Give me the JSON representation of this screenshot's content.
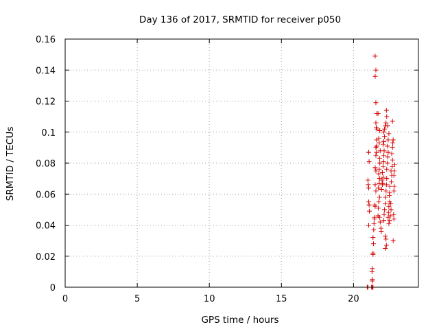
{
  "chart_data": {
    "type": "scatter",
    "title": "Day 136 of 2017, SRMTID for receiver p050",
    "xlabel": "GPS time / hours",
    "ylabel": "SRMTID / TECUs",
    "xlim": [
      0,
      24.5
    ],
    "ylim": [
      0,
      0.16
    ],
    "xticks": [
      0,
      5,
      10,
      15,
      20
    ],
    "yticks": [
      0,
      0.02,
      0.04,
      0.06,
      0.08,
      0.1,
      0.12,
      0.14,
      0.16
    ],
    "xtick_labels": [
      "0",
      "5",
      "10",
      "15",
      "20"
    ],
    "ytick_labels": [
      "0",
      "0.02",
      "0.04",
      "0.06",
      "0.08",
      "0.1",
      "0.12",
      "0.14",
      "0.16"
    ],
    "grid": true,
    "marker": "plus",
    "color": "#d40000",
    "series": [
      {
        "points": [
          [
            20.95,
            0.0
          ],
          [
            21.0,
            0.0
          ],
          [
            21.25,
            0.0
          ],
          [
            21.3,
            0.0
          ],
          [
            21.35,
            0.0
          ],
          [
            21.28,
            0.0
          ],
          [
            21.05,
            0.087
          ],
          [
            21.08,
            0.081
          ],
          [
            21.0,
            0.069
          ],
          [
            21.02,
            0.066
          ],
          [
            21.05,
            0.064
          ],
          [
            21.05,
            0.055
          ],
          [
            21.08,
            0.053
          ],
          [
            21.1,
            0.049
          ],
          [
            21.05,
            0.04
          ],
          [
            21.28,
            0.01
          ],
          [
            21.3,
            0.012
          ],
          [
            21.3,
            0.004
          ],
          [
            21.3,
            0.005
          ],
          [
            21.35,
            0.021
          ],
          [
            21.35,
            0.022
          ],
          [
            21.38,
            0.028
          ],
          [
            21.35,
            0.032
          ],
          [
            21.4,
            0.037
          ],
          [
            21.42,
            0.041
          ],
          [
            21.45,
            0.044
          ],
          [
            21.45,
            0.045
          ],
          [
            21.5,
            0.052
          ],
          [
            21.48,
            0.053
          ],
          [
            21.55,
            0.062
          ],
          [
            21.5,
            0.066
          ],
          [
            21.55,
            0.075
          ],
          [
            21.5,
            0.077
          ],
          [
            21.55,
            0.085
          ],
          [
            21.6,
            0.087
          ],
          [
            21.55,
            0.09
          ],
          [
            21.6,
            0.091
          ],
          [
            21.6,
            0.095
          ],
          [
            21.62,
            0.102
          ],
          [
            21.58,
            0.103
          ],
          [
            21.55,
            0.106
          ],
          [
            21.62,
            0.112
          ],
          [
            21.55,
            0.119
          ],
          [
            21.5,
            0.136
          ],
          [
            21.55,
            0.14
          ],
          [
            21.5,
            0.149
          ],
          [
            21.7,
            0.046
          ],
          [
            21.72,
            0.051
          ],
          [
            21.75,
            0.055
          ],
          [
            21.8,
            0.058
          ],
          [
            21.72,
            0.064
          ],
          [
            21.78,
            0.067
          ],
          [
            21.8,
            0.07
          ],
          [
            21.75,
            0.073
          ],
          [
            21.78,
            0.076
          ],
          [
            21.82,
            0.08
          ],
          [
            21.8,
            0.083
          ],
          [
            21.85,
            0.088
          ],
          [
            21.78,
            0.093
          ],
          [
            21.75,
            0.096
          ],
          [
            21.82,
            0.101
          ],
          [
            21.7,
            0.112
          ],
          [
            21.8,
            0.045
          ],
          [
            21.85,
            0.042
          ],
          [
            21.9,
            0.038
          ],
          [
            21.92,
            0.036
          ],
          [
            21.95,
            0.063
          ],
          [
            22.0,
            0.066
          ],
          [
            22.02,
            0.067
          ],
          [
            21.98,
            0.069
          ],
          [
            22.05,
            0.071
          ],
          [
            22.0,
            0.074
          ],
          [
            22.05,
            0.078
          ],
          [
            22.08,
            0.081
          ],
          [
            22.1,
            0.085
          ],
          [
            22.12,
            0.088
          ],
          [
            22.05,
            0.092
          ],
          [
            22.1,
            0.094
          ],
          [
            22.15,
            0.097
          ],
          [
            22.1,
            0.1
          ],
          [
            22.15,
            0.102
          ],
          [
            22.2,
            0.104
          ],
          [
            22.25,
            0.106
          ],
          [
            22.3,
            0.11
          ],
          [
            22.28,
            0.114
          ],
          [
            22.1,
            0.043
          ],
          [
            22.12,
            0.047
          ],
          [
            22.15,
            0.05
          ],
          [
            22.2,
            0.054
          ],
          [
            22.22,
            0.058
          ],
          [
            22.25,
            0.062
          ],
          [
            22.28,
            0.066
          ],
          [
            22.3,
            0.07
          ],
          [
            22.2,
            0.033
          ],
          [
            22.25,
            0.031
          ],
          [
            22.28,
            0.027
          ],
          [
            22.2,
            0.025
          ],
          [
            22.3,
            0.076
          ],
          [
            22.35,
            0.08
          ],
          [
            22.38,
            0.084
          ],
          [
            22.4,
            0.087
          ],
          [
            22.35,
            0.091
          ],
          [
            22.4,
            0.095
          ],
          [
            22.45,
            0.099
          ],
          [
            22.38,
            0.104
          ],
          [
            22.4,
            0.045
          ],
          [
            22.42,
            0.048
          ],
          [
            22.45,
            0.052
          ],
          [
            22.5,
            0.055
          ],
          [
            22.48,
            0.059
          ],
          [
            22.5,
            0.061
          ],
          [
            22.52,
            0.065
          ],
          [
            22.45,
            0.041
          ],
          [
            22.5,
            0.043
          ],
          [
            22.55,
            0.046
          ],
          [
            22.6,
            0.05
          ],
          [
            22.58,
            0.054
          ],
          [
            22.62,
            0.068
          ],
          [
            22.65,
            0.072
          ],
          [
            22.6,
            0.075
          ],
          [
            22.68,
            0.078
          ],
          [
            22.7,
            0.082
          ],
          [
            22.65,
            0.086
          ],
          [
            22.7,
            0.09
          ],
          [
            22.72,
            0.093
          ],
          [
            22.75,
            0.095
          ],
          [
            22.7,
            0.107
          ],
          [
            22.75,
            0.03
          ],
          [
            22.8,
            0.044
          ],
          [
            22.78,
            0.047
          ],
          [
            22.8,
            0.062
          ],
          [
            22.82,
            0.065
          ],
          [
            22.8,
            0.072
          ],
          [
            22.82,
            0.075
          ],
          [
            22.85,
            0.079
          ]
        ]
      }
    ]
  }
}
